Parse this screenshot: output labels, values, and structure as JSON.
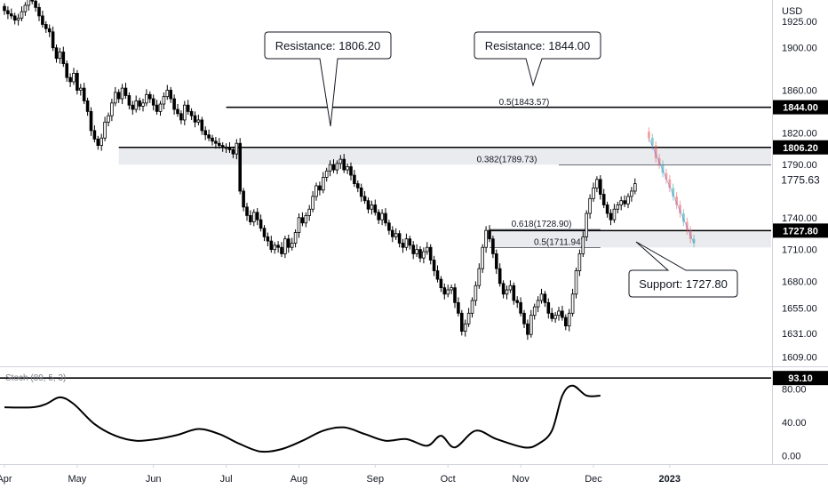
{
  "chart_data": [
    {
      "type": "candlestick",
      "title": "",
      "price_unit": "USD",
      "ylim": [
        1600,
        1945
      ],
      "y_ticks": [
        {
          "v": 1925,
          "label": "1925.00"
        },
        {
          "v": 1900,
          "label": "1900.00"
        },
        {
          "v": 1860,
          "label": "1860.00"
        },
        {
          "v": 1820,
          "label": "1820.00"
        },
        {
          "v": 1790,
          "label": "1790.00"
        },
        {
          "v": 1740,
          "label": "1740.00"
        },
        {
          "v": 1710,
          "label": "1710.00"
        },
        {
          "v": 1680,
          "label": "1680.00"
        },
        {
          "v": 1655,
          "label": "1655.00"
        },
        {
          "v": 1631,
          "label": "1631.00"
        },
        {
          "v": 1609,
          "label": "1609.00"
        }
      ],
      "x_ticks": [
        {
          "i": 0,
          "label": "Apr"
        },
        {
          "i": 21,
          "label": "May"
        },
        {
          "i": 43,
          "label": "Jun"
        },
        {
          "i": 64,
          "label": "Jul"
        },
        {
          "i": 85,
          "label": "Aug"
        },
        {
          "i": 107,
          "label": "Sep"
        },
        {
          "i": 128,
          "label": "Oct"
        },
        {
          "i": 149,
          "label": "Nov"
        },
        {
          "i": 170,
          "label": "Dec"
        },
        {
          "i": 192,
          "label": "2023"
        }
      ],
      "close": [
        1935,
        1932,
        1930,
        1926,
        1928,
        1934,
        1940,
        1946,
        1944,
        1938,
        1930,
        1922,
        1918,
        1915,
        1900,
        1890,
        1896,
        1885,
        1872,
        1868,
        1876,
        1860,
        1862,
        1850,
        1840,
        1822,
        1814,
        1808,
        1815,
        1830,
        1836,
        1848,
        1858,
        1852,
        1862,
        1855,
        1846,
        1842,
        1850,
        1845,
        1848,
        1856,
        1852,
        1846,
        1840,
        1847,
        1854,
        1860,
        1852,
        1842,
        1838,
        1832,
        1846,
        1840,
        1836,
        1830,
        1832,
        1822,
        1818,
        1815,
        1812,
        1810,
        1808,
        1806,
        1806,
        1804,
        1800,
        1810,
        1765,
        1750,
        1742,
        1736,
        1745,
        1738,
        1730,
        1722,
        1718,
        1710,
        1714,
        1712,
        1706,
        1720,
        1712,
        1716,
        1726,
        1740,
        1735,
        1742,
        1748,
        1760,
        1770,
        1766,
        1778,
        1784,
        1790,
        1785,
        1791,
        1795,
        1785,
        1788,
        1780,
        1772,
        1768,
        1760,
        1756,
        1748,
        1752,
        1745,
        1738,
        1744,
        1735,
        1728,
        1722,
        1725,
        1716,
        1712,
        1720,
        1714,
        1706,
        1710,
        1702,
        1708,
        1712,
        1700,
        1690,
        1682,
        1674,
        1668,
        1672,
        1674,
        1660,
        1650,
        1633,
        1640,
        1650,
        1662,
        1676,
        1692,
        1712,
        1728,
        1720,
        1706,
        1692,
        1678,
        1668,
        1672,
        1676,
        1662,
        1660,
        1650,
        1640,
        1630,
        1648,
        1656,
        1662,
        1668,
        1660,
        1650,
        1645,
        1648,
        1652,
        1646,
        1638,
        1650,
        1668,
        1690,
        1706,
        1722,
        1744,
        1758,
        1768,
        1776,
        1762,
        1752,
        1744,
        1738,
        1748,
        1752,
        1756,
        1753,
        1760,
        1765,
        1772
      ],
      "faded_x": [
        186,
        187,
        188,
        189,
        190,
        191,
        192,
        193,
        194,
        195,
        196,
        197,
        198,
        199
      ],
      "faded_close": [
        1815,
        1808,
        1796,
        1790,
        1782,
        1776,
        1768,
        1760,
        1752,
        1744,
        1736,
        1728,
        1720,
        1716
      ],
      "levels": [
        {
          "price": 1844.0,
          "label": "1844.00",
          "color": "#000000"
        },
        {
          "price": 1806.2,
          "label": "1806.20",
          "color": "#000000"
        },
        {
          "price": 1775.63,
          "label": "1775.63",
          "color": "#ffffff",
          "text_color": "#131722"
        },
        {
          "price": 1727.8,
          "label": "1727.80",
          "color": "#000000"
        }
      ],
      "fib_levels": [
        {
          "price": 1843.57,
          "label": "0.5(1843.57)"
        },
        {
          "price": 1789.73,
          "label": "0.382(1789.73)"
        },
        {
          "price": 1728.9,
          "label": "0.618(1728.90)"
        },
        {
          "price": 1711.94,
          "label": "0.5(1711.94)"
        }
      ],
      "zones": [
        {
          "from": 1790,
          "to": 1806.2
        },
        {
          "from": 1711.94,
          "to": 1727.8
        }
      ],
      "callouts": [
        {
          "text": "Resistance: 1806.20",
          "anchor_i": 84,
          "anchor_price": 1810
        },
        {
          "text": "Resistance: 1844.00",
          "anchor_i": 140,
          "anchor_price": 1870
        },
        {
          "text": "Support: 1727.80",
          "anchor_i": 160,
          "anchor_price": 1712
        }
      ]
    },
    {
      "type": "line",
      "name": "Stoch (89, 5, 3)",
      "ylim": [
        -10,
        105
      ],
      "y_ticks": [
        {
          "v": 80,
          "label": "80.00"
        },
        {
          "v": 40,
          "label": "40.00"
        },
        {
          "v": 0,
          "label": "0.00"
        }
      ],
      "reference_level": {
        "value": 93.1,
        "label": "93.10"
      },
      "values": [
        [
          0,
          58
        ],
        [
          8,
          58
        ],
        [
          12,
          62
        ],
        [
          16,
          70
        ],
        [
          20,
          62
        ],
        [
          26,
          38
        ],
        [
          32,
          24
        ],
        [
          38,
          18
        ],
        [
          44,
          20
        ],
        [
          50,
          25
        ],
        [
          56,
          32
        ],
        [
          62,
          26
        ],
        [
          68,
          14
        ],
        [
          74,
          5
        ],
        [
          80,
          8
        ],
        [
          86,
          18
        ],
        [
          92,
          30
        ],
        [
          98,
          34
        ],
        [
          104,
          26
        ],
        [
          110,
          18
        ],
        [
          116,
          20
        ],
        [
          122,
          12
        ],
        [
          126,
          24
        ],
        [
          130,
          10
        ],
        [
          136,
          30
        ],
        [
          142,
          20
        ],
        [
          150,
          10
        ],
        [
          154,
          14
        ],
        [
          158,
          30
        ],
        [
          161,
          72
        ],
        [
          164,
          84
        ],
        [
          168,
          72
        ],
        [
          172,
          72
        ]
      ]
    }
  ]
}
